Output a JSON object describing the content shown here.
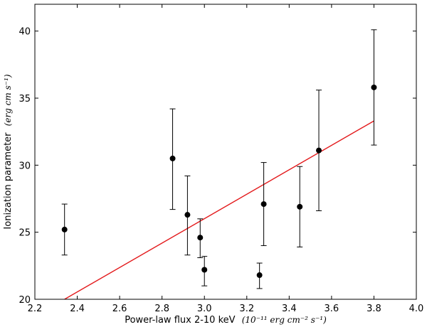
{
  "chart_data": {
    "type": "scatter",
    "xlabel": "Power-law flux 2-10 keV",
    "xlabel_unit": "(10⁻¹¹ erg cm⁻² s⁻¹)",
    "ylabel": "Ionization parameter",
    "ylabel_unit": "(erg cm s⁻¹)",
    "xlim": [
      2.2,
      4.0
    ],
    "ylim": [
      20,
      42
    ],
    "xticks": [
      2.2,
      2.4,
      2.6,
      2.8,
      3.0,
      3.2,
      3.4,
      3.6,
      3.8,
      4.0
    ],
    "xtick_labels": [
      "2.2",
      "2.4",
      "2.6",
      "2.8",
      "3.0",
      "3.2",
      "3.4",
      "3.6",
      "3.8",
      "4.0"
    ],
    "yticks": [
      20,
      25,
      30,
      35,
      40
    ],
    "ytick_labels": [
      "20",
      "25",
      "30",
      "35",
      "40"
    ],
    "grid": false,
    "legend": "none",
    "series": [
      {
        "marker": "circle",
        "color": "#000000",
        "points": [
          {
            "x": 2.34,
            "y": 25.2,
            "y_low": 23.3,
            "y_high": 27.1
          },
          {
            "x": 2.85,
            "y": 30.5,
            "y_low": 26.7,
            "y_high": 34.2
          },
          {
            "x": 2.92,
            "y": 26.3,
            "y_low": 23.3,
            "y_high": 29.2
          },
          {
            "x": 2.98,
            "y": 24.6,
            "y_low": 23.1,
            "y_high": 26.0
          },
          {
            "x": 3.0,
            "y": 22.2,
            "y_low": 21.0,
            "y_high": 23.2
          },
          {
            "x": 3.26,
            "y": 21.8,
            "y_low": 20.8,
            "y_high": 22.7
          },
          {
            "x": 3.28,
            "y": 27.1,
            "y_low": 24.0,
            "y_high": 30.2
          },
          {
            "x": 3.45,
            "y": 26.9,
            "y_low": 23.9,
            "y_high": 29.9
          },
          {
            "x": 3.54,
            "y": 31.1,
            "y_low": 26.6,
            "y_high": 35.6
          },
          {
            "x": 3.8,
            "y": 35.8,
            "y_low": 31.5,
            "y_high": 40.1
          }
        ]
      }
    ],
    "fit_line": {
      "color": "#e31a1c",
      "x": [
        2.34,
        3.8
      ],
      "y": [
        20.0,
        33.3
      ]
    }
  }
}
